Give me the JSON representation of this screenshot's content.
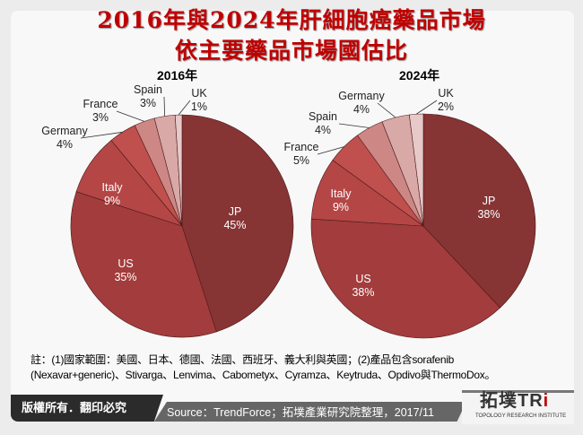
{
  "title_line1": "2016年與2024年肝細胞癌藥品市場",
  "title_line2": "依主要藥品市場國估比",
  "chart_data": [
    {
      "type": "pie",
      "title": "2016年",
      "categories": [
        "JP",
        "US",
        "Italy",
        "Germany",
        "France",
        "Spain",
        "UK"
      ],
      "values": [
        45,
        35,
        9,
        4,
        3,
        3,
        1
      ],
      "labels": [
        "45%",
        "35%",
        "9%",
        "4%",
        "3%",
        "3%",
        "1%"
      ]
    },
    {
      "type": "pie",
      "title": "2024年",
      "categories": [
        "JP",
        "US",
        "Italy",
        "France",
        "Spain",
        "Germany",
        "UK"
      ],
      "values": [
        38,
        38,
        9,
        5,
        4,
        4,
        2
      ],
      "labels": [
        "38%",
        "38%",
        "9%",
        "5%",
        "4%",
        "4%",
        "2%"
      ]
    }
  ],
  "colors": [
    "#873434",
    "#a33c3c",
    "#b54646",
    "#c0504d",
    "#cd8784",
    "#d9a9a8",
    "#e6c9c8"
  ],
  "note_line1": "註：(1)國家範圍：美國、日本、德國、法國、西班牙、義大利與英國；(2)產品包含sorafenib",
  "note_line2": "(Nexavar+generic)、Stivarga、Lenvima、Cabometyx、Cyramza、Keytruda、Opdivo與ThermoDox。",
  "footer": {
    "copyright": "版權所有．翻印必究",
    "source": "Source：TrendForce；拓墣產業研究院整理，2017/11",
    "logo": "拓墣TRi",
    "logo_sub": "TOPOLOGY RESEARCH INSTITUTE"
  }
}
